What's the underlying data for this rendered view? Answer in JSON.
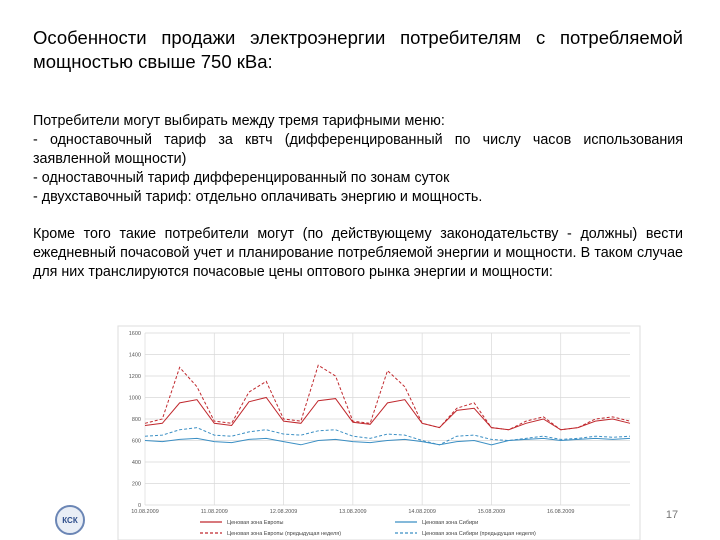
{
  "title": "Особенности продажи электроэнергии потребителям с потребляемой мощностью свыше 750 кВа:",
  "intro": "Потребители могут выбирать между тремя тарифными меню:",
  "options": [
    "- одноставочный тариф за квтч (дифференцированный по числу часов использования заявленной мощности)",
    "- одноставочный тариф дифференцированный по зонам суток",
    "- двухставочный тариф: отдельно оплачивать энергию и мощность."
  ],
  "paragraph": "Кроме того такие потребители могут (по действующему законодательству - должны) вести ежедневный почасовой учет и планирование потребляемой энергии и мощности. В таком случае для них транслируются почасовые цены оптового рынка энергии и мощности:",
  "chart": {
    "type": "line",
    "x": [
      0,
      0.25,
      0.5,
      0.75,
      1,
      1.25,
      1.5,
      1.75,
      2,
      2.25,
      2.5,
      2.75,
      3,
      3.25,
      3.5,
      3.75,
      4,
      4.25,
      4.5,
      4.75,
      5,
      5.25,
      5.5,
      5.75,
      6,
      6.25,
      6.5,
      6.75,
      7
    ],
    "xlim": [
      0,
      7
    ],
    "xticks": [
      {
        "value": 0,
        "label": "10.08.2009"
      },
      {
        "value": 1,
        "label": "11.08.2009"
      },
      {
        "value": 2,
        "label": "12.08.2009"
      },
      {
        "value": 3,
        "label": "13.08.2009"
      },
      {
        "value": 4,
        "label": "14.08.2009"
      },
      {
        "value": 5,
        "label": "15.08.2009"
      },
      {
        "value": 6,
        "label": "16.08.2009"
      }
    ],
    "ylim": [
      0,
      1600
    ],
    "yticks": [
      0,
      200,
      400,
      600,
      800,
      1000,
      1200,
      1400,
      1600
    ],
    "grid": true,
    "series": [
      {
        "name": "Ценовая зона Европы",
        "color": "#c0282d",
        "dashed": false,
        "values": [
          740,
          760,
          950,
          980,
          760,
          740,
          960,
          1000,
          780,
          760,
          970,
          990,
          770,
          750,
          950,
          980,
          760,
          720,
          880,
          900,
          720,
          700,
          760,
          800,
          700,
          720,
          780,
          800,
          760
        ]
      },
      {
        "name": "Ценовая зона Сибири",
        "color": "#3b8fc4",
        "dashed": false,
        "values": [
          600,
          590,
          610,
          620,
          590,
          580,
          610,
          620,
          590,
          560,
          600,
          610,
          590,
          580,
          600,
          610,
          590,
          560,
          590,
          600,
          560,
          600,
          610,
          620,
          600,
          610,
          620,
          610,
          620
        ]
      },
      {
        "name": "Ценовая зона Европы (предыдущая неделя)",
        "color": "#c0282d",
        "dashed": true,
        "values": [
          760,
          800,
          1280,
          1100,
          780,
          760,
          1050,
          1150,
          800,
          780,
          1300,
          1200,
          780,
          760,
          1250,
          1100,
          760,
          720,
          900,
          950,
          720,
          700,
          780,
          820,
          700,
          720,
          800,
          820,
          780
        ]
      },
      {
        "name": "Ценовая зона Сибири (предыдущая неделя)",
        "color": "#3b8fc4",
        "dashed": true,
        "values": [
          640,
          650,
          700,
          720,
          650,
          640,
          680,
          700,
          660,
          650,
          690,
          700,
          640,
          620,
          660,
          650,
          600,
          560,
          640,
          650,
          610,
          600,
          620,
          640,
          610,
          620,
          640,
          630,
          640
        ]
      }
    ]
  },
  "page_number": 17
}
